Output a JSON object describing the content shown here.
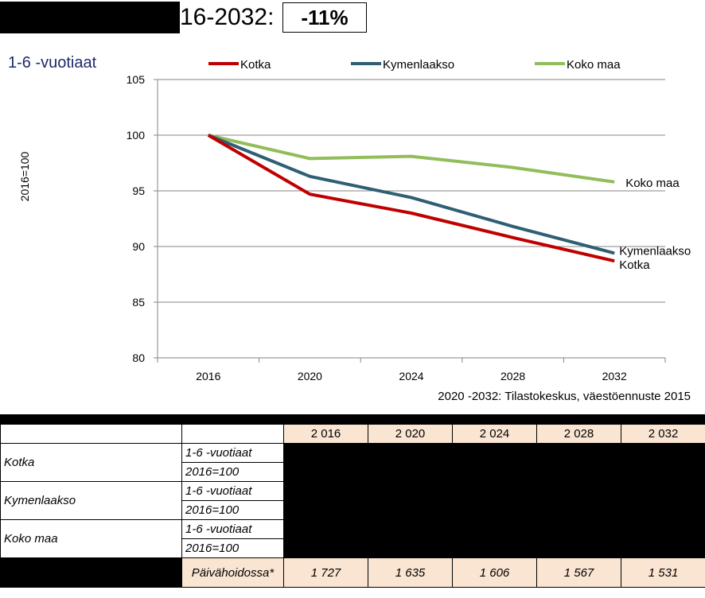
{
  "header": {
    "title_visible": "16-2032:",
    "change_pct": "-11%",
    "subtitle": "1-6 -vuotiaat"
  },
  "chart_data": {
    "type": "line",
    "ylabel": "2016=100",
    "ylim": [
      80,
      105
    ],
    "yticks": [
      "105",
      "100",
      "95",
      "90",
      "85",
      "80"
    ],
    "categories": [
      "2016",
      "2020",
      "2024",
      "2028",
      "2032"
    ],
    "source": "2020 -2032: Tilastokeskus, väestöennuste 2015",
    "legend_position": "top",
    "series": [
      {
        "name": "Kotka",
        "color": "#c00000",
        "values": [
          100,
          94.7,
          93.0,
          90.8,
          88.7
        ]
      },
      {
        "name": "Kymenlaakso",
        "color": "#2e5f73",
        "values": [
          100,
          96.3,
          94.4,
          91.8,
          89.4
        ]
      },
      {
        "name": "Koko maa",
        "color": "#92bd5a",
        "values": [
          100,
          97.9,
          98.1,
          97.1,
          95.8
        ]
      }
    ],
    "end_labels": [
      "Koko maa",
      "Kymenlaakso",
      "Kotka"
    ]
  },
  "table": {
    "years": [
      "2 016",
      "2 020",
      "2 024",
      "2 028",
      "2 032"
    ],
    "rows": [
      {
        "name": "Kotka",
        "sub1": "1-6 -vuotiaat",
        "sub2": "2016=100"
      },
      {
        "name": "Kymenlaakso",
        "sub1": "1-6 -vuotiaat",
        "sub2": "2016=100"
      },
      {
        "name": "Koko maa",
        "sub1": "1-6 -vuotiaat",
        "sub2": "2016=100"
      }
    ],
    "daycare_label": "Päivähoidossa*",
    "daycare_values": [
      "1 727",
      "1 635",
      "1 606",
      "1 567",
      "1 531"
    ]
  }
}
